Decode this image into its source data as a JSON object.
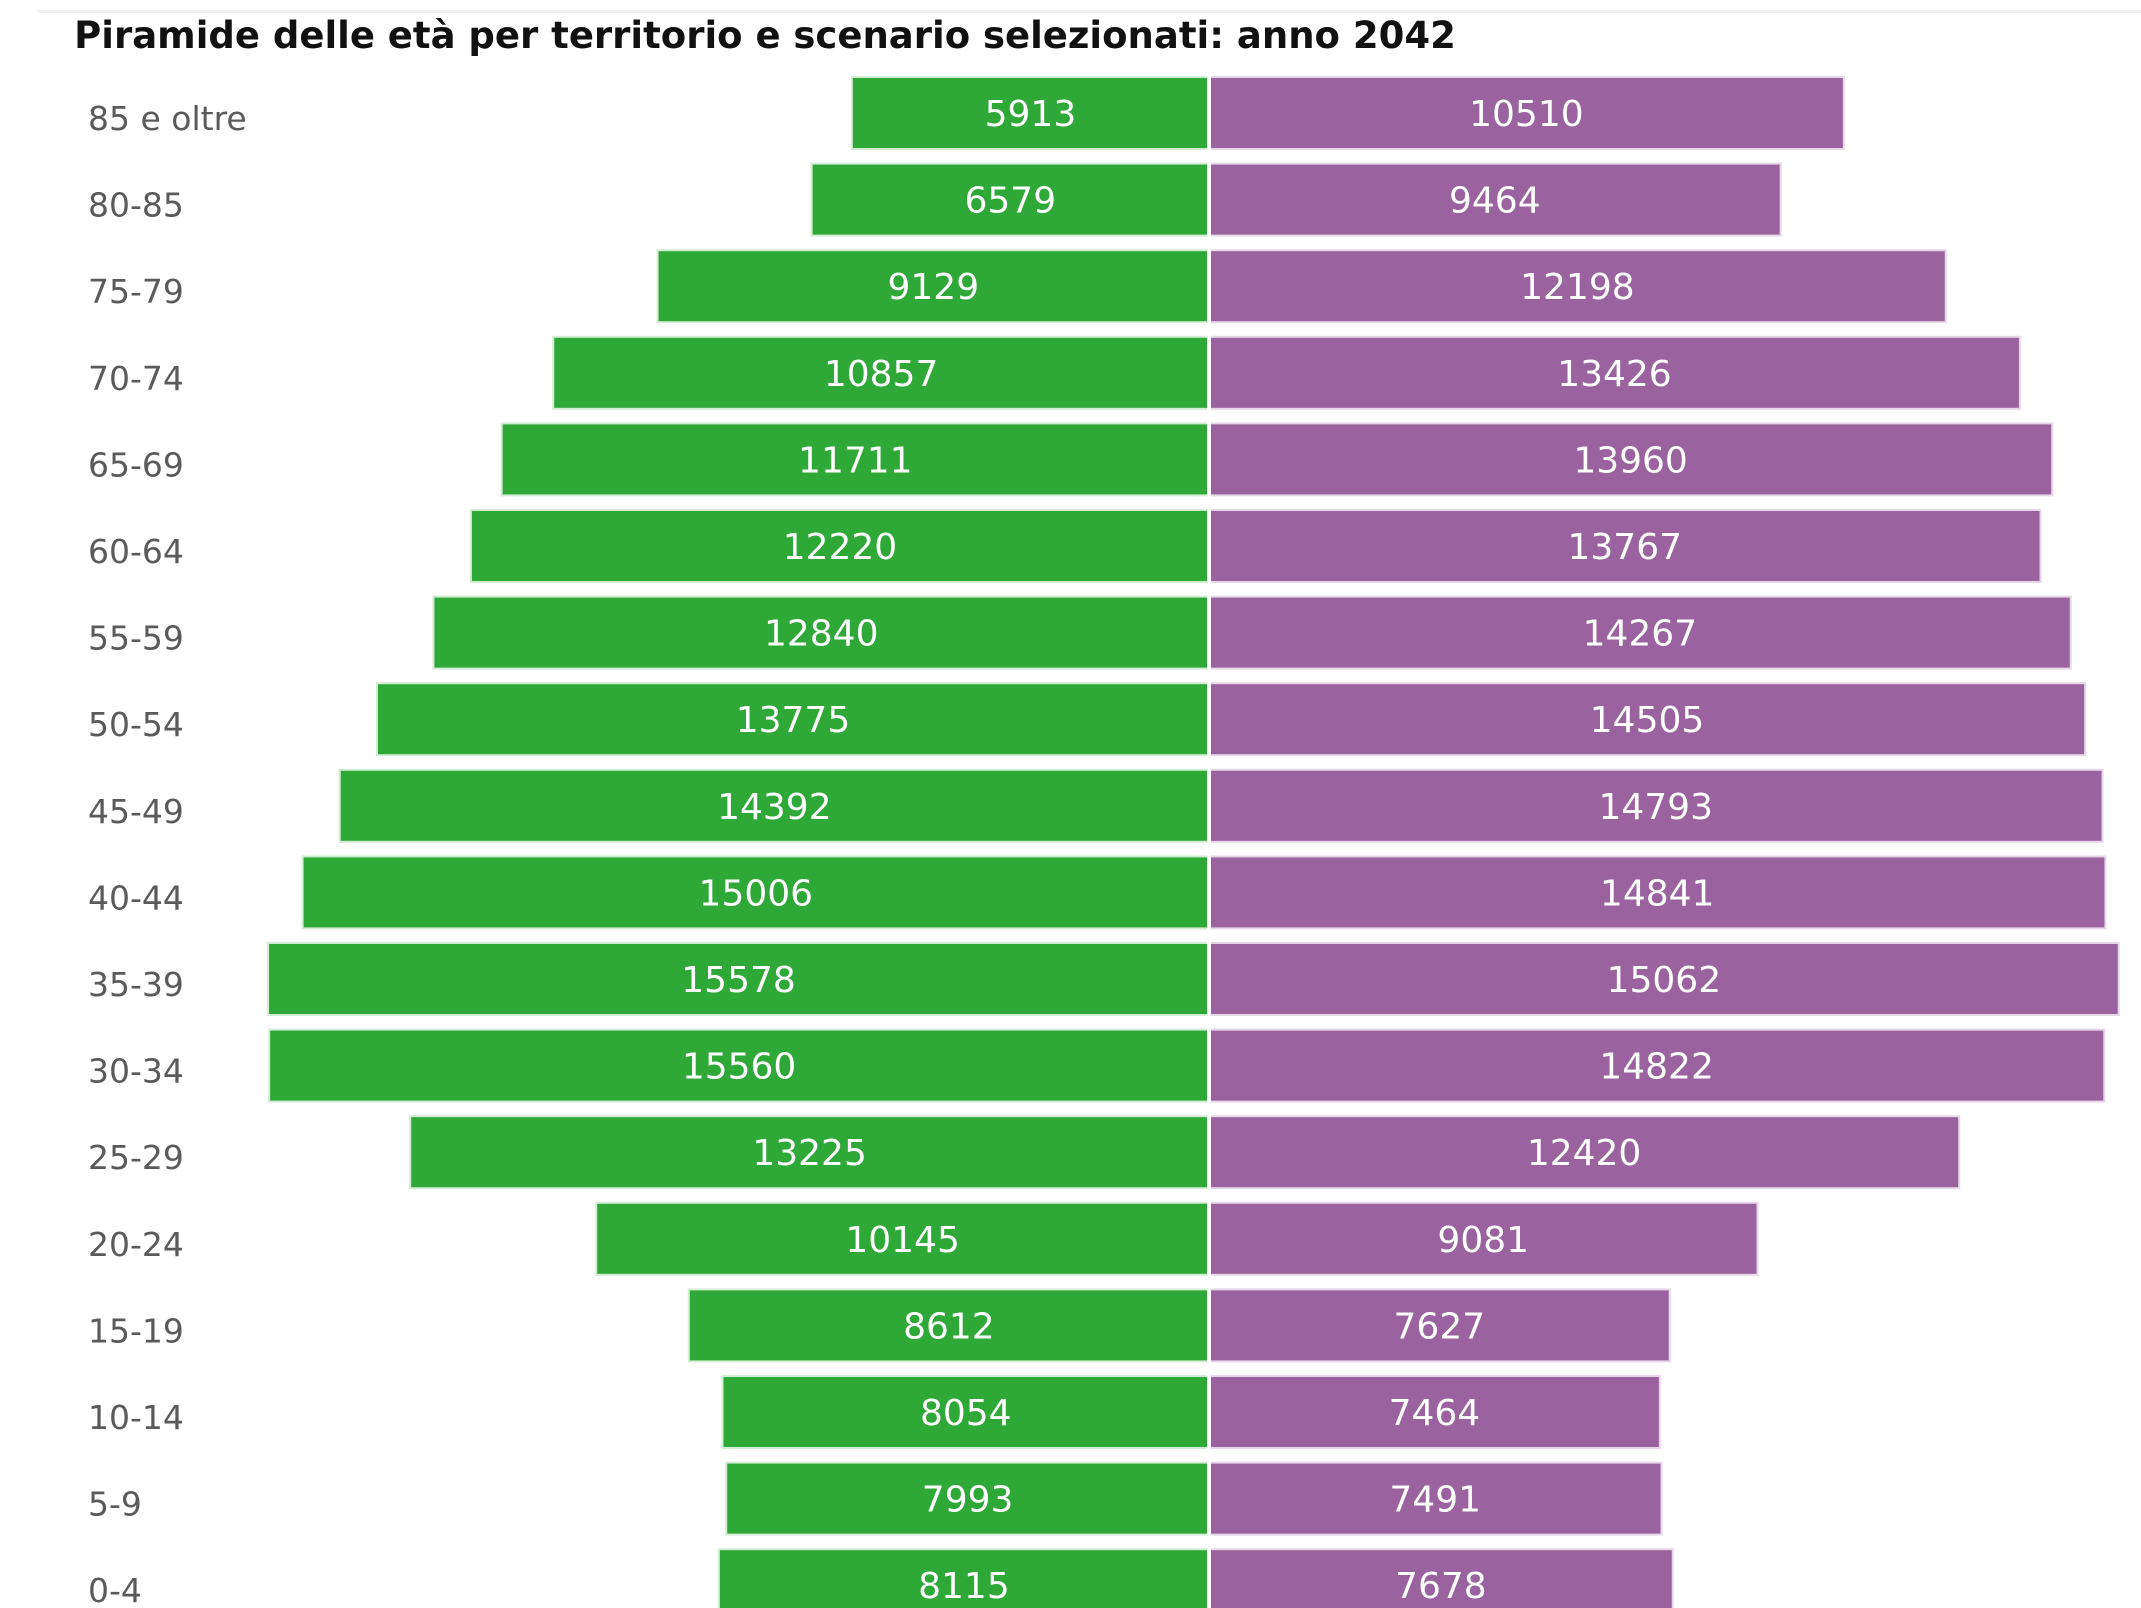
{
  "chart_data": {
    "type": "bar",
    "title": "Piramide delle età per territorio e scenario selezionati: anno 2042",
    "categories": [
      "85 e oltre",
      "80-85",
      "75-79",
      "70-74",
      "65-69",
      "60-64",
      "55-59",
      "50-54",
      "45-49",
      "40-44",
      "35-39",
      "30-34",
      "25-29",
      "20-24",
      "15-19",
      "10-14",
      "5-9",
      "0-4"
    ],
    "series": [
      {
        "color": "#2ea836",
        "values": [
          5913,
          6579,
          9129,
          10857,
          11711,
          12220,
          12840,
          13775,
          14392,
          15006,
          15578,
          15560,
          13225,
          10145,
          8612,
          8054,
          7993,
          8115
        ]
      },
      {
        "color": "#9b62a0",
        "values": [
          10510,
          9464,
          12198,
          13426,
          13960,
          13767,
          14267,
          14505,
          14793,
          14841,
          15062,
          14822,
          12420,
          9081,
          7627,
          7464,
          7491,
          7678
        ]
      }
    ],
    "orientation": "horizontal-back-to-back",
    "xlabel": "",
    "ylabel": "",
    "grid": false,
    "legend": "none",
    "data_labels": true
  }
}
